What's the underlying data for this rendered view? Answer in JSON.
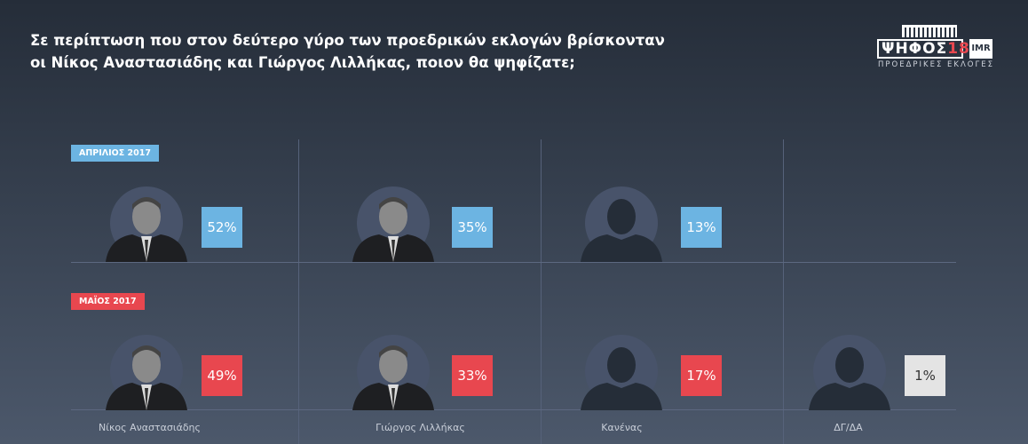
{
  "title_line1": "Σε περίπτωση που στον δεύτερο γύρο των προεδρικών εκλογών βρίσκονταν",
  "title_line2": "οι Νίκος Αναστασιάδης και Γιώργος Λιλλήκας, ποιον θα ψηφίζατε;",
  "logo": {
    "main": "ΨΗΦΟΣ",
    "year": "18",
    "partner": "IMR",
    "sub": "ΠΡΟΕΔΡΙΚΕΣ ΕΚΛΟΓΕΣ"
  },
  "colors": {
    "april": "#6cb4e2",
    "may": "#e8474f",
    "undecided": "#e4e4e4"
  },
  "candidates": [
    "Νίκος Αναστασιάδης",
    "Γιώργος Λιλλήκας",
    "Κανένας",
    "ΔΓ/ΔΑ"
  ],
  "rows": [
    {
      "label": "ΑΠΡΙΛΙΟΣ 2017",
      "values": [
        "52%",
        "35%",
        "13%"
      ]
    },
    {
      "label": "ΜΑΪΟΣ 2017",
      "values": [
        "49%",
        "33%",
        "17%",
        "1%"
      ]
    }
  ]
}
